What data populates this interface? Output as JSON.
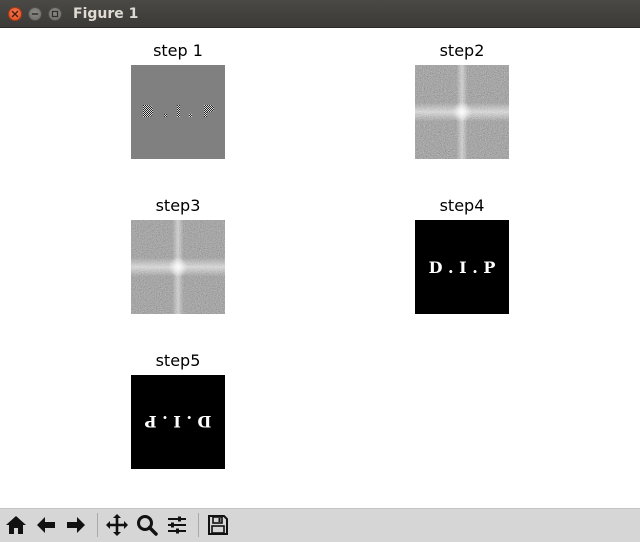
{
  "window": {
    "title": "Figure 1"
  },
  "subplots": [
    {
      "title": "step 1",
      "image": "spatial-domain-modulated-text-image"
    },
    {
      "title": "step2",
      "image": "fourier-spectrum-magnitude"
    },
    {
      "title": "step3",
      "image": "fourier-spectrum-magnitude"
    },
    {
      "title": "step4",
      "image": "restored-text-image"
    },
    {
      "title": "step5",
      "image": "rotated-text-image"
    }
  ],
  "panel_text": {
    "step4": "D . I . P",
    "step5": "D . I . P"
  },
  "toolbar": {
    "buttons": [
      "home-icon",
      "back-icon",
      "forward-icon",
      "pan-icon",
      "zoom-icon",
      "configure-subplots-icon",
      "save-icon"
    ]
  },
  "colors": {
    "titlebar": "#3c3b37",
    "toolbar": "#d6d6d6",
    "step1_background": "#808080",
    "dark_panel": "#000000",
    "close_button": "#e95420"
  }
}
